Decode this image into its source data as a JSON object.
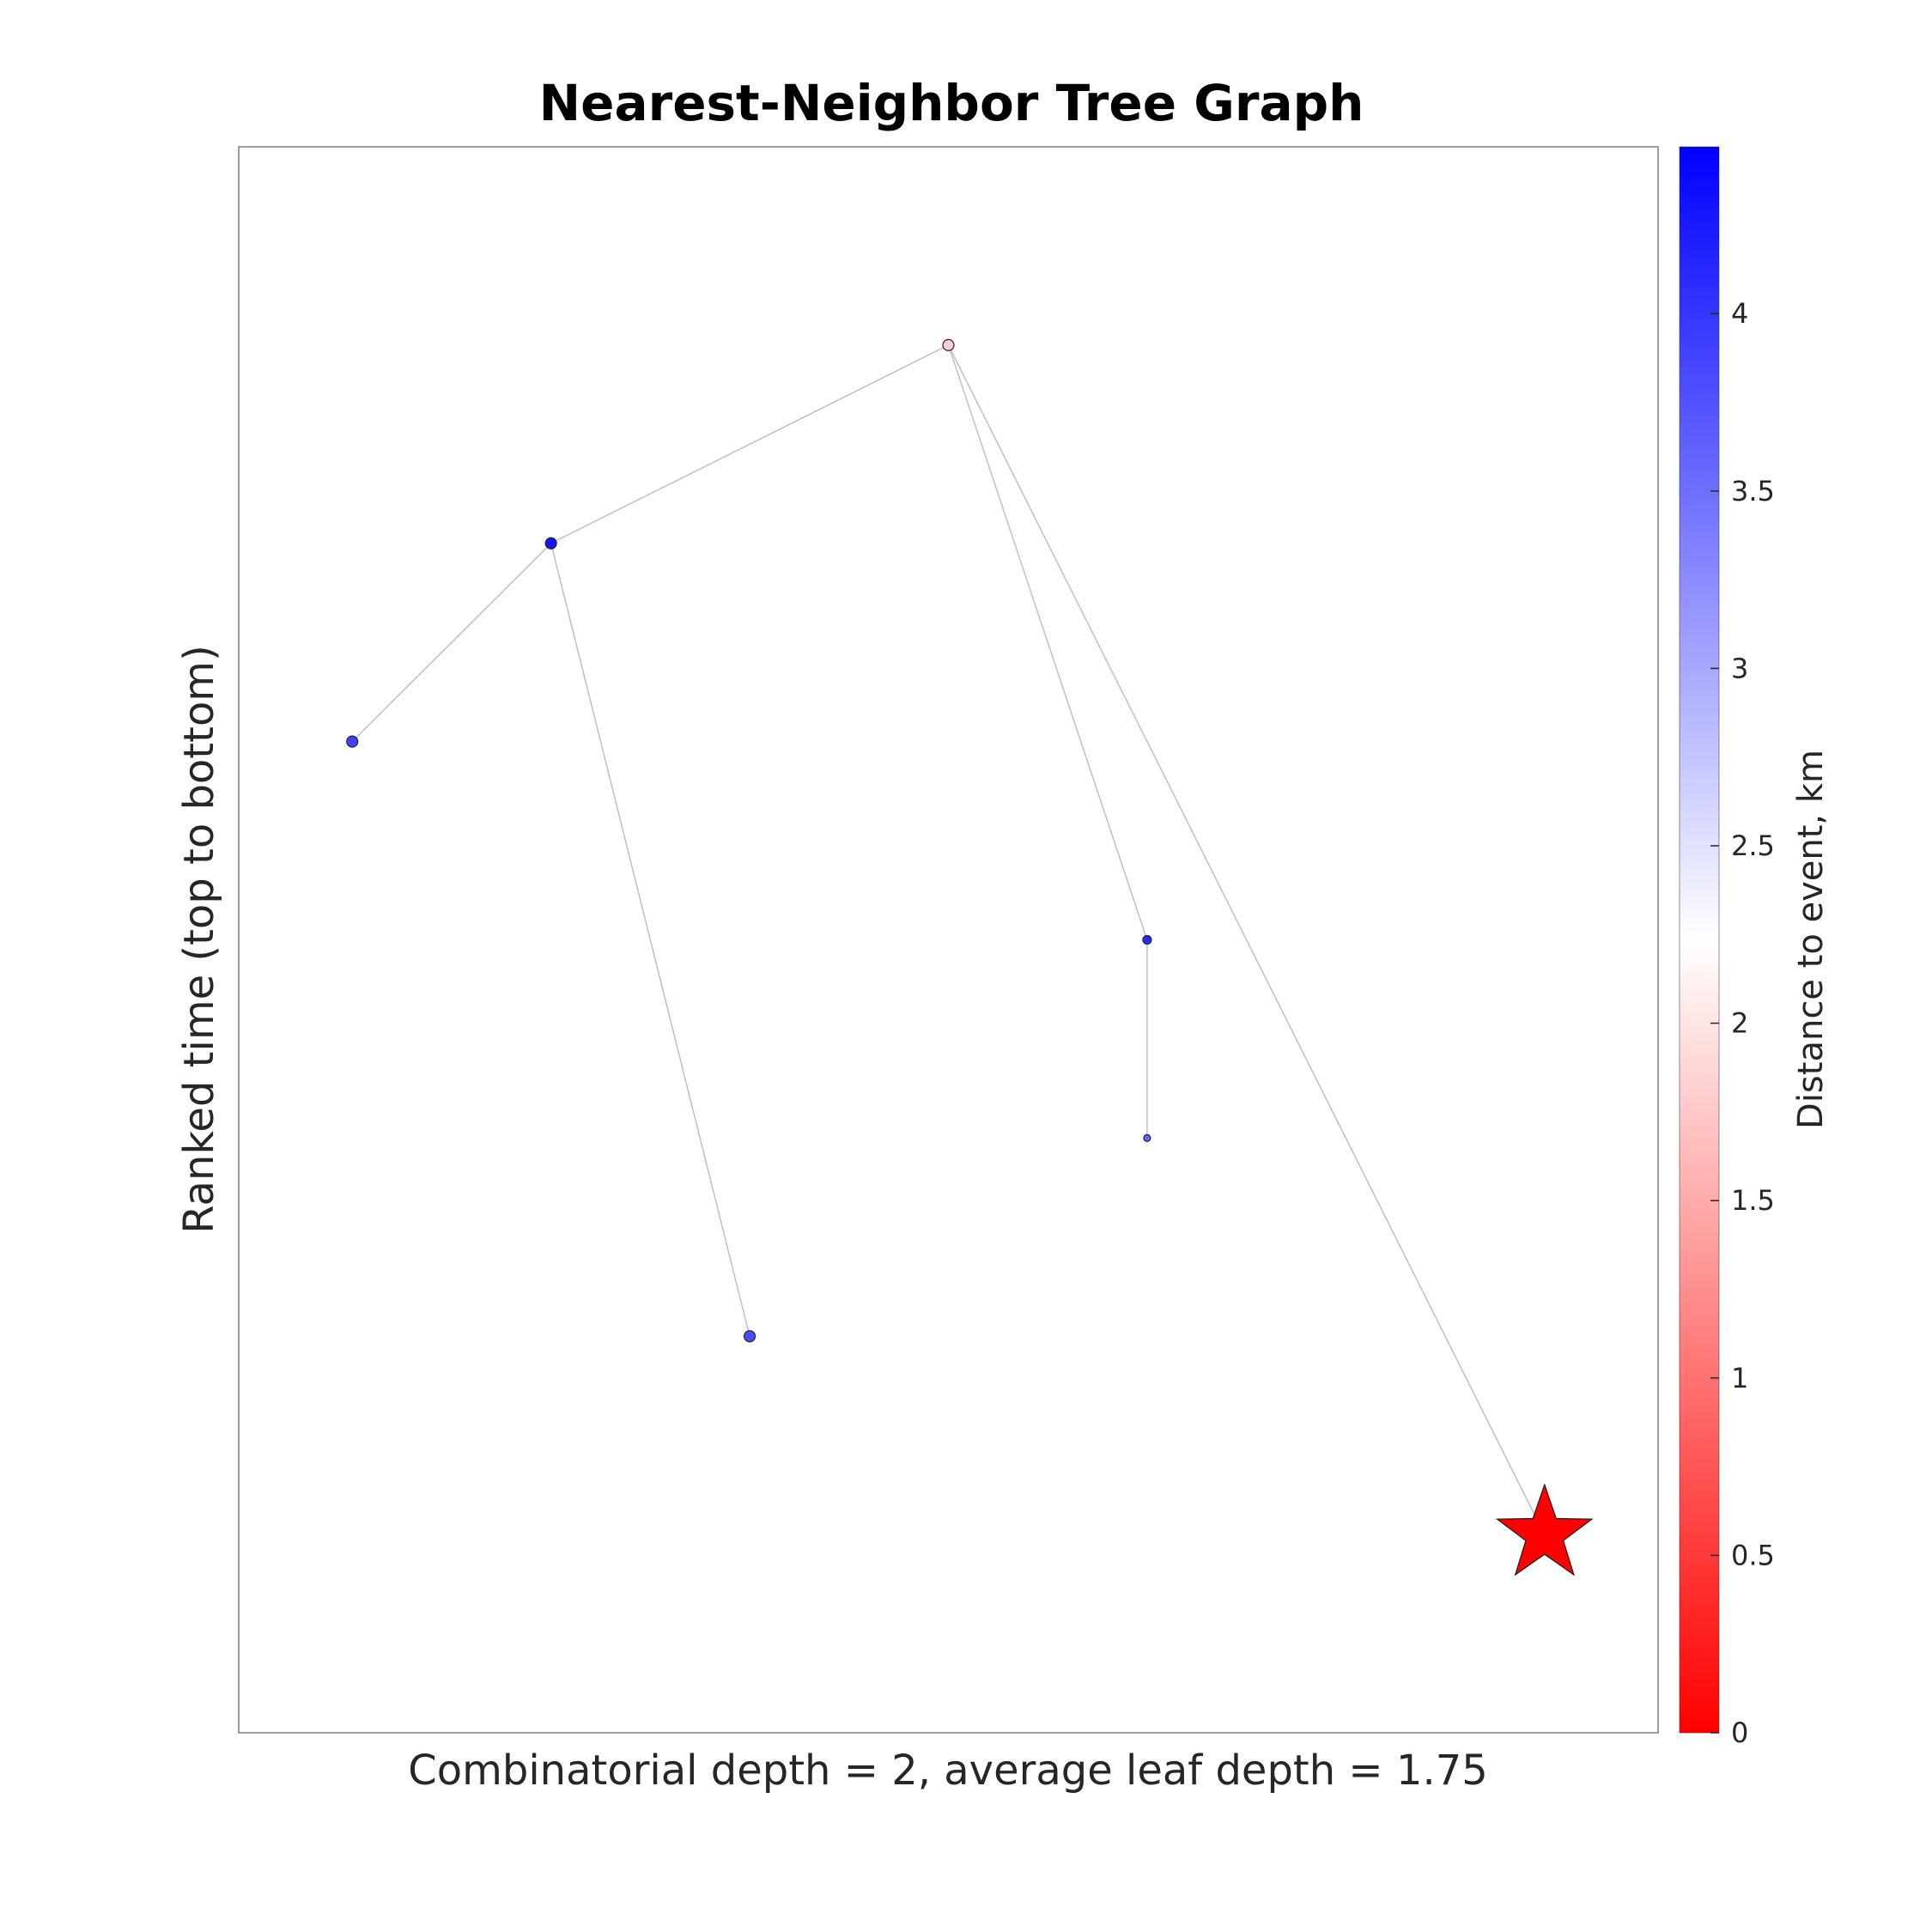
{
  "chart_data": {
    "type": "scatter",
    "title": "Nearest-Neighbor Tree Graph",
    "xlabel": "Combinatorial depth = 2, average leaf depth = 1.75",
    "ylabel": "Ranked time (top to bottom)",
    "x_ticks_shown": false,
    "y_ticks_shown": false,
    "grid": false,
    "nodes": [
      {
        "id": "n1",
        "x": 0.5,
        "y": 1,
        "distance_km": 1.8,
        "size": "medium"
      },
      {
        "id": "n2",
        "x": 0.22,
        "y": 2,
        "distance_km": 4.3,
        "size": "medium"
      },
      {
        "id": "n3",
        "x": 0.08,
        "y": 3,
        "distance_km": 3.9,
        "size": "medium"
      },
      {
        "id": "n4",
        "x": 0.64,
        "y": 4,
        "distance_km": 4.1,
        "size": "small"
      },
      {
        "id": "n5",
        "x": 0.64,
        "y": 5,
        "distance_km": 3.6,
        "size": "tiny"
      },
      {
        "id": "n6",
        "x": 0.36,
        "y": 6,
        "distance_km": 3.8,
        "size": "medium"
      },
      {
        "id": "event",
        "x": 0.92,
        "y": 7,
        "distance_km": 0,
        "marker": "star",
        "color": "#ff0000"
      }
    ],
    "edges": [
      [
        "n1",
        "n2"
      ],
      [
        "n2",
        "n3"
      ],
      [
        "n2",
        "n6"
      ],
      [
        "n1",
        "n4"
      ],
      [
        "n4",
        "n5"
      ],
      [
        "n1",
        "event"
      ]
    ],
    "colorbar": {
      "label": "Distance to event, km",
      "min": 0,
      "max": 4.47,
      "ticks": [
        0,
        0.5,
        1,
        1.5,
        2,
        2.5,
        3,
        3.5,
        4
      ],
      "tick_labels": [
        "0",
        "0.5",
        "1",
        "1.5",
        "2",
        "2.5",
        "3",
        "3.5",
        "4"
      ],
      "colors": {
        "low": "#ff0000",
        "mid": "#ffffff",
        "high": "#0000ff"
      }
    }
  }
}
